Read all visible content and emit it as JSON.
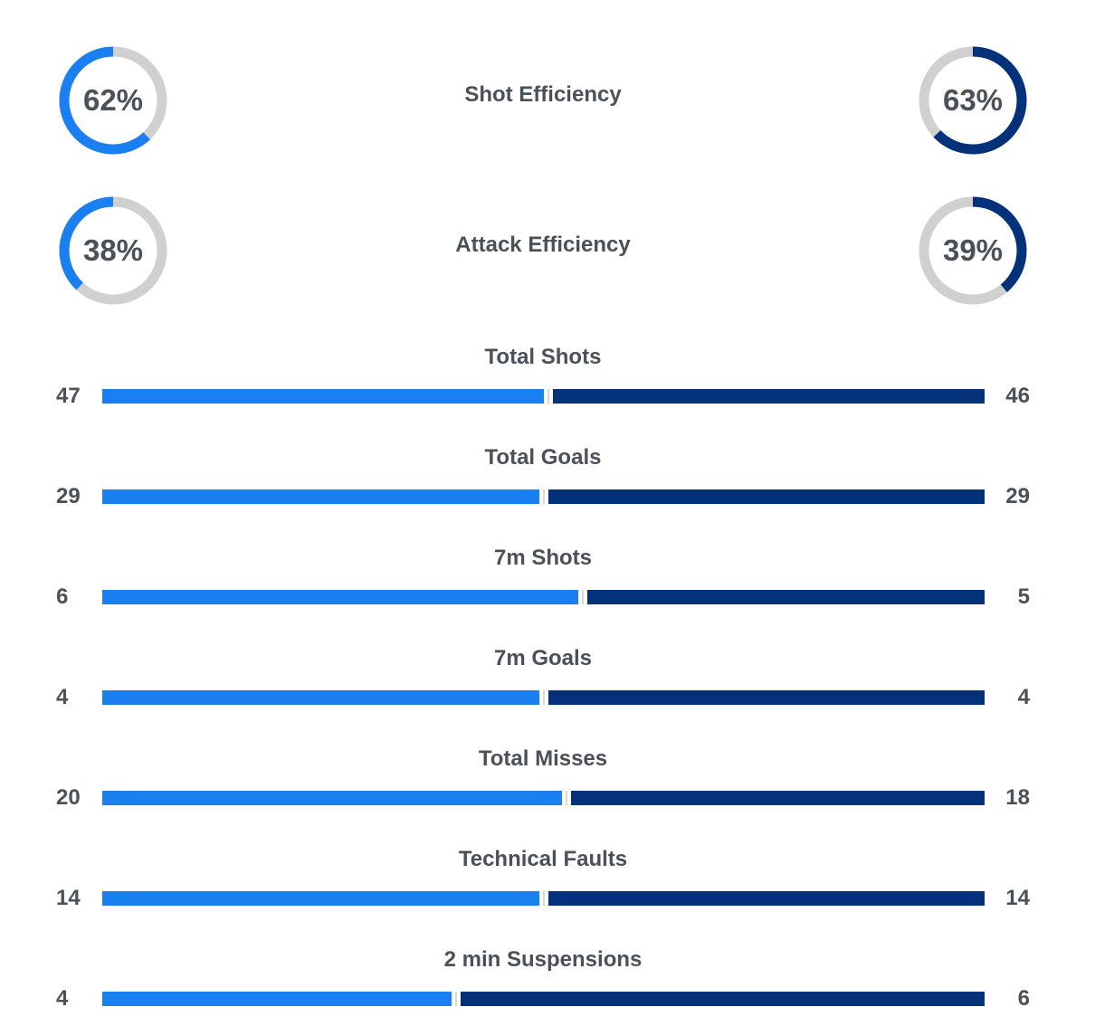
{
  "colors": {
    "home": "#1a7ff0",
    "away": "#04327a",
    "ring_track": "#d0d0d0",
    "text": "#4a5159"
  },
  "chart_data": [
    {
      "type": "pie",
      "title": "Shot Efficiency",
      "home_label": "62%",
      "away_label": "63%",
      "values": [
        62,
        63
      ]
    },
    {
      "type": "pie",
      "title": "Attack Efficiency",
      "home_label": "38%",
      "away_label": "39%",
      "values": [
        38,
        39
      ]
    },
    {
      "type": "bar",
      "orientation": "horizontal-comparison",
      "categories": [
        "Total Shots",
        "Total Goals",
        "7m Shots",
        "7m Goals",
        "Total Misses",
        "Technical Faults",
        "2 min Suspensions"
      ],
      "series": [
        {
          "values": [
            47,
            29,
            6,
            4,
            20,
            14,
            4
          ]
        },
        {
          "values": [
            46,
            29,
            5,
            4,
            18,
            14,
            6
          ]
        }
      ]
    }
  ]
}
